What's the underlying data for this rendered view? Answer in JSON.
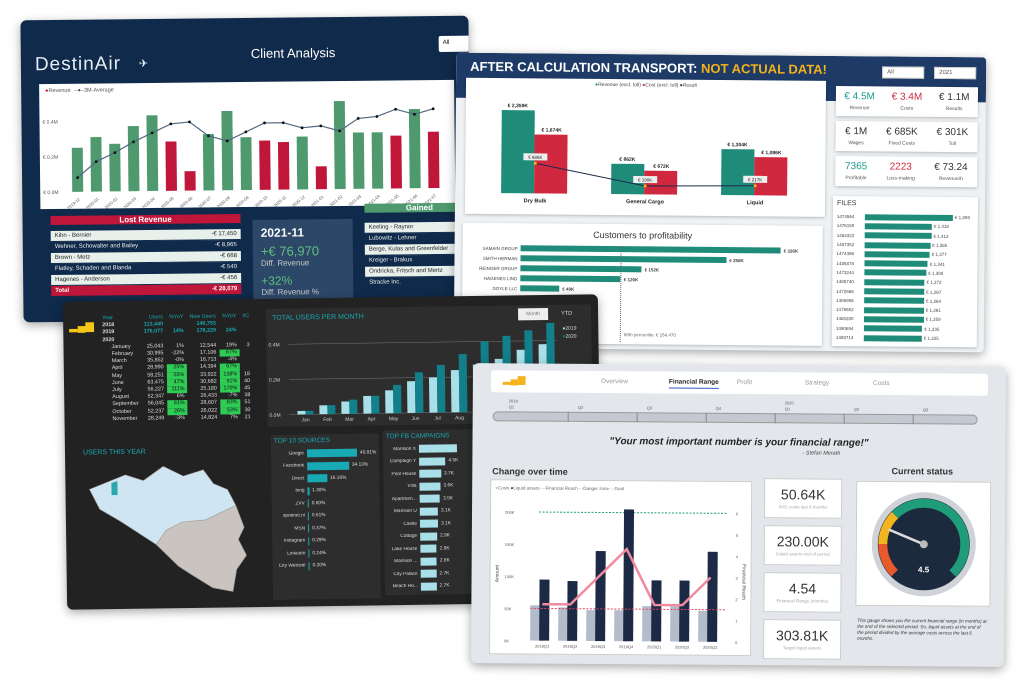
{
  "client_analysis": {
    "logo": "DestinAir",
    "title": "Client Analysis",
    "filter": "All",
    "legend": {
      "revenue": "Revenue",
      "average": "3M-Average"
    },
    "colors": {
      "up": "#4e9a6e",
      "down": "#c0163a",
      "line": "#4f6681"
    },
    "chart_data": {
      "type": "bar",
      "y_ticks": [
        "€ 0.0M",
        "€ 0.2M",
        "€ 0.4M"
      ],
      "ylim": [
        0,
        0.5
      ],
      "categories": [
        "2019-12",
        "2020-01",
        "2020-02",
        "2020-03",
        "2020-04",
        "2020-05",
        "2020-06",
        "2020-07",
        "2020-08",
        "2020-09",
        "2020-10",
        "2020-11",
        "2020-12",
        "2021-01",
        "2021-02",
        "2021-03",
        "2021-04",
        "2021-05",
        "2021-06",
        "2021-07"
      ],
      "revenue": [
        0.25,
        0.31,
        0.27,
        0.37,
        0.43,
        0.28,
        0.11,
        0.32,
        0.45,
        0.3,
        0.28,
        0.27,
        0.3,
        0.13,
        0.5,
        0.32,
        0.32,
        0.3,
        0.45,
        0.32
      ],
      "status": [
        "up",
        "up",
        "up",
        "up",
        "up",
        "down",
        "down",
        "up",
        "up",
        "up",
        "down",
        "down",
        "up",
        "down",
        "up",
        "up",
        "up",
        "down",
        "up",
        "down"
      ],
      "average": [
        0.08,
        0.17,
        0.22,
        0.28,
        0.33,
        0.38,
        0.39,
        0.31,
        0.28,
        0.33,
        0.38,
        0.38,
        0.35,
        0.36,
        0.33,
        0.4,
        0.41,
        0.45,
        0.42,
        0.45
      ]
    },
    "lost": {
      "title": "Lost Revenue",
      "rows": [
        [
          "Kihn - Bernier",
          "-€ 17,450"
        ],
        [
          "Wehner, Schowalter and Bailey",
          "-€ 8,965"
        ],
        [
          "Brown - Metz",
          "-€ 668"
        ],
        [
          "Flatley, Schaden and Blanda",
          "-€ 540"
        ],
        [
          "Hagenes - Anderson",
          "-€ 456"
        ]
      ],
      "total_label": "Total",
      "total": "-€ 28,079"
    },
    "kpi": {
      "period": "2021-11",
      "diff": "+€ 76,970",
      "diff_label": "Diff. Revenue",
      "pct": "+32%",
      "pct_label": "Diff. Revenue %"
    },
    "gained": {
      "title": "Gained",
      "rows": [
        "Keeling - Raynor",
        "Lubowitz - Lehner",
        "Berge, Kulas and Greenfelder",
        "Kreiger - Brakus",
        "Ondricka, Fritsch and Mertz",
        "Stracke Inc."
      ]
    }
  },
  "transport": {
    "title": "AFTER CALCULATION TRANSPORT:",
    "warning": "NOT ACTUAL DATA!",
    "filter1": "All",
    "filter2": "2021",
    "colors": {
      "revenue": "#1f8c7a",
      "cost": "#d0283f",
      "result": "#1d2a4a"
    },
    "chart_data": {
      "type": "bar",
      "legend": [
        "Revenue (excl. toll)",
        "Cost (excl. toll)",
        "Result"
      ],
      "categories": [
        "Dry Bulk",
        "General Cargo",
        "Liquid"
      ],
      "revenue": [
        2359,
        862,
        1304
      ],
      "cost": [
        1674,
        672,
        1086
      ],
      "result": [
        686,
        190,
        217
      ],
      "revenue_labels": [
        "€ 2,359K",
        "€ 862K",
        "€ 1,304K"
      ],
      "cost_labels": [
        "€ 1,674K",
        "€ 672K",
        "€ 1,086K"
      ],
      "result_labels": [
        "€ 686K",
        "€ 190K",
        "€ 217K"
      ]
    },
    "kpis": [
      [
        {
          "v": "€ 4.5M",
          "l": "Revenue",
          "c": "#1f9c8a"
        },
        {
          "v": "€ 3.4M",
          "l": "Costs",
          "c": "#d0283f"
        },
        {
          "v": "€ 1.1M",
          "l": "Results",
          "c": "#333"
        }
      ],
      [
        {
          "v": "€ 1M",
          "l": "Wages",
          "c": "#333"
        },
        {
          "v": "€ 685K",
          "l": "Fixed Costs",
          "c": "#333"
        },
        {
          "v": "€ 301K",
          "l": "Toll",
          "c": "#333"
        }
      ],
      [
        {
          "v": "7365",
          "l": "Profitable",
          "c": "#1f9c8a"
        },
        {
          "v": "2223",
          "l": "Loss-making",
          "c": "#d0283f"
        },
        {
          "v": "€ 73.24",
          "l": "Revenue/h",
          "c": "#333"
        }
      ]
    ],
    "files": {
      "title": "FILES",
      "rows": [
        [
          "1474564",
          1859,
          "€ 1,859"
        ],
        [
          "1476150",
          1418,
          "€ 1,418"
        ],
        [
          "1484322",
          1412,
          "€ 1,412"
        ],
        [
          "1487352",
          1385,
          "€ 1,385"
        ],
        [
          "1474366",
          1377,
          "€ 1,377"
        ],
        [
          "1485878",
          1341,
          "€ 1,341"
        ],
        [
          "1473244",
          1308,
          "€ 1,308"
        ],
        [
          "1485740",
          1272,
          "€ 1,272"
        ],
        [
          "1472566",
          1267,
          "€ 1,267"
        ],
        [
          "1486956",
          1264,
          "€ 1,264"
        ],
        [
          "1476652",
          1261,
          "€ 1,261"
        ],
        [
          "1485280",
          1259,
          "€ 1,259"
        ],
        [
          "1490894",
          1235,
          "€ 1,235"
        ],
        [
          "1489714",
          1225,
          "€ 1,225"
        ]
      ]
    },
    "customers": {
      "title": "Customers to profitability",
      "rows": [
        [
          "SAMAIN GROUP",
          326,
          "€ 326K"
        ],
        [
          "SMITH HERMAN",
          258,
          "€ 258K"
        ],
        [
          "REINGER GROUP",
          152,
          "€ 152K"
        ],
        [
          "HAGENES LIND",
          126,
          "€ 126K"
        ],
        [
          "DOYLE LLC",
          49,
          "€ 49K"
        ]
      ],
      "percentile": "80th percentile: € 164,470"
    }
  },
  "web": {
    "table": {
      "headers": [
        "Year",
        "Users",
        "%YoY",
        "New Users",
        "%YoY",
        "#C"
      ],
      "years": [
        [
          "2018",
          "113,440",
          "",
          "146,753",
          ""
        ],
        [
          "2019",
          "176,077",
          "14%",
          "178,229",
          "24%"
        ],
        [
          "2020",
          "",
          "",
          "",
          ""
        ]
      ],
      "months": [
        [
          "January",
          "25,043",
          "1%",
          "12,544",
          "19%",
          "3"
        ],
        [
          "February",
          "30,995",
          "-22%",
          "17,106",
          "67%",
          ""
        ],
        [
          "March",
          "35,852",
          "-0%",
          "16,713",
          "-4%",
          ""
        ],
        [
          "April",
          "28,990",
          "25%",
          "14,394",
          "67%",
          ""
        ],
        [
          "May",
          "58,251",
          "55%",
          "33,922",
          "138%",
          "18"
        ],
        [
          "June",
          "63,475",
          "47%",
          "30,682",
          "91%",
          "40"
        ],
        [
          "July",
          "56,227",
          "111%",
          "25,180",
          "170%",
          "45"
        ],
        [
          "August",
          "52,347",
          "6%",
          "26,433",
          "-7%",
          "38"
        ],
        [
          "September",
          "56,045",
          "61%",
          "28,607",
          "63%",
          "51"
        ],
        [
          "October",
          "52,237",
          "26%",
          "26,022",
          "53%",
          "30"
        ],
        [
          "November",
          "28,249",
          "-3%",
          "14,824",
          "7%",
          "21"
        ]
      ]
    },
    "users_chart": {
      "title": "TOTAL USERS PER MONTH",
      "btn_month": "Month",
      "btn_ytd": "YTD",
      "colors": {
        "2019": "#a8dfe8",
        "2020": "#12808a"
      },
      "chart_data": {
        "type": "bar",
        "y_ticks": [
          "0.0M",
          "0.2M",
          "0.4M"
        ],
        "ylim": [
          0,
          0.5
        ],
        "categories": [
          "Jan",
          "Feb",
          "Mar",
          "Apr",
          "May",
          "Jun",
          "Jul",
          "Aug",
          "Sep",
          "Oct",
          "Nov",
          "Dec"
        ],
        "series": [
          {
            "name": "2019",
            "values": [
              0.02,
              0.05,
              0.07,
              0.1,
              0.13,
              0.18,
              0.2,
              0.24,
              0.27,
              0.3,
              0.35,
              0.38
            ]
          },
          {
            "name": "2020",
            "values": [
              0.02,
              0.05,
              0.08,
              0.1,
              0.16,
              0.23,
              0.27,
              0.33,
              0.4,
              0.43,
              0.46,
              0.5
            ]
          }
        ]
      }
    },
    "map": {
      "title": "USERS THIS YEAR"
    },
    "sources": {
      "title": "TOP 10 SOURCES",
      "rows": [
        [
          "Google",
          40.91,
          "40.91%"
        ],
        [
          "Facebook",
          34.13,
          "34.13%"
        ],
        [
          "Direct",
          16.16,
          "16.16%"
        ],
        [
          "bing",
          1.3,
          "1.30%"
        ],
        [
          "ZVV",
          0.6,
          "0.60%"
        ],
        [
          "spotinet.nl",
          0.61,
          "0.61%"
        ],
        [
          "MSN",
          0.37,
          "0.37%"
        ],
        [
          "Instagram",
          0.29,
          "0.29%"
        ],
        [
          "LinkedIn",
          0.24,
          "0.24%"
        ],
        [
          "City Website",
          0.2,
          "0.20%"
        ]
      ]
    },
    "campaigns": {
      "title": "TOP FB CAMPAIGNS",
      "rows": [
        [
          "Mansion X",
          6.5,
          ""
        ],
        [
          "Campaign Y",
          4.5,
          "4.5K"
        ],
        [
          "Pool House",
          3.7,
          "3.7K"
        ],
        [
          "Villa",
          3.6,
          "3.6K"
        ],
        [
          "Apartmen...",
          3.5,
          "3.5K"
        ],
        [
          "Mansion U",
          3.1,
          "3.1K"
        ],
        [
          "Castle",
          3.1,
          "3.1K"
        ],
        [
          "Cottage",
          2.9,
          "2.9K"
        ],
        [
          "Lake House",
          2.8,
          "2.8K"
        ],
        [
          "Mansion ...",
          2.8,
          "2.8K"
        ],
        [
          "City Palace",
          2.7,
          "2.7K"
        ],
        [
          "Beach Ho...",
          2.7,
          "2.7K"
        ]
      ]
    }
  },
  "finance": {
    "tabs": [
      "Overview",
      "Financial Range",
      "Profit",
      "Strategy",
      "Costs"
    ],
    "active_tab": 1,
    "timeline": [
      [
        "2019",
        "Q1"
      ],
      [
        "",
        "Q2"
      ],
      [
        "",
        "Q3"
      ],
      [
        "",
        "Q4"
      ],
      [
        "2020",
        "Q1"
      ],
      [
        "",
        "Q2"
      ],
      [
        "",
        "Q3"
      ]
    ],
    "quote": "\"Your most important number is your financial range!\"",
    "author": "- Stefan Merath",
    "chart_title": "Change over time",
    "chart_data": {
      "type": "bar",
      "legend": [
        "Costs",
        "Liquid assets",
        "Financial Reach",
        "Danger zone",
        "Goal"
      ],
      "categories": [
        "2019Q1",
        "2019Q2",
        "2019Q3",
        "2019Q4",
        "2020Q1",
        "2020Q2",
        "2020Q3"
      ],
      "y_ticks": [
        "0K",
        "50K",
        "100K",
        "150K",
        "200K"
      ],
      "ylim": [
        0,
        210000
      ],
      "y2_ticks": [
        "0",
        "1",
        "2",
        "3",
        "4",
        "5",
        "6"
      ],
      "y2lim": [
        0,
        6.3
      ],
      "ylabel": "Amount",
      "y2label": "Financial Reach",
      "costs": [
        55000,
        52000,
        48000,
        48000,
        55000,
        55000,
        48000
      ],
      "liquid": [
        95000,
        93000,
        140000,
        205000,
        95000,
        95000,
        140000
      ],
      "reach": [
        1.7,
        1.7,
        3.0,
        4.3,
        1.7,
        1.7,
        3.0
      ],
      "danger": 1.5,
      "goal": 6
    },
    "colors": {
      "costs": "#b3bccb",
      "liquid": "#1c2a45",
      "reach": "#f08aa0",
      "danger": "#e0445e",
      "goal": "#1f9c7a"
    },
    "kpis": [
      [
        "50.64K",
        "AVG costs last 6 months"
      ],
      [
        "230.00K",
        "Liquid assets end of period"
      ],
      [
        "4.54",
        "Financial Range (months)"
      ],
      [
        "303.81K",
        "Target liquid assets"
      ]
    ],
    "status_title": "Current status",
    "gauge": {
      "value": "4.5",
      "v": 4.5,
      "max": 18
    },
    "description": "This gauge shows you the current financial range (in months) at the end of the selected period. So, liquid assets at the end of the period divided by the average costs across the last 6 months."
  }
}
